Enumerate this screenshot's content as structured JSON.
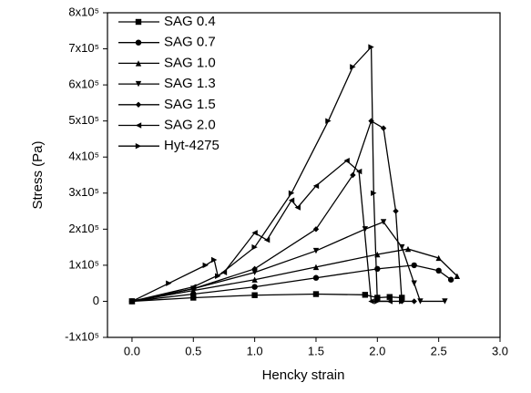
{
  "chart_data": {
    "type": "line",
    "x_label": "Hencky strain",
    "y_label": "Stress (Pa)",
    "xlim": [
      -0.2,
      3.0
    ],
    "xticks": [
      {
        "value": 0,
        "label": "0.0"
      },
      0.5,
      {
        "value": 1,
        "label": "1.0"
      },
      1.5,
      {
        "value": 2,
        "label": "2.0"
      },
      2.5,
      {
        "value": 3,
        "label": "3.0"
      }
    ],
    "ylim": [
      -100000,
      800000
    ],
    "yticks": [
      {
        "value": -100000,
        "label": "-1x10⁵"
      },
      0,
      {
        "value": 100000,
        "label": "1x10⁵"
      },
      {
        "value": 200000,
        "label": "2x10⁵"
      },
      {
        "value": 300000,
        "label": "3x10⁵"
      },
      {
        "value": 400000,
        "label": "4x10⁵"
      },
      {
        "value": 500000,
        "label": "5x10⁵"
      },
      {
        "value": 600000,
        "label": "6x10⁵"
      },
      {
        "value": 700000,
        "label": "7x10⁵"
      },
      {
        "value": 800000,
        "label": "8x10⁵"
      }
    ],
    "legend": "top-left",
    "series": [
      {
        "name": "SAG 0.4",
        "color": "#000000",
        "marker": "square",
        "x": [
          0,
          0.5,
          1.0,
          1.5,
          1.9,
          2.0,
          2.1,
          2.2
        ],
        "values": [
          0,
          10000,
          17000,
          20000,
          18000,
          10000,
          12000,
          10000
        ]
      },
      {
        "name": "SAG 0.7",
        "color": "#000000",
        "marker": "circle",
        "x": [
          0,
          0.5,
          1.0,
          1.5,
          2.0,
          2.3,
          2.5,
          2.6
        ],
        "values": [
          0,
          20000,
          40000,
          65000,
          90000,
          100000,
          85000,
          60000
        ]
      },
      {
        "name": "SAG 1.0",
        "color": "#000000",
        "marker": "triangle-up",
        "x": [
          0,
          0.5,
          1.0,
          1.5,
          2.0,
          2.25,
          2.5,
          2.65
        ],
        "values": [
          0,
          30000,
          60000,
          95000,
          130000,
          145000,
          120000,
          70000
        ]
      },
      {
        "name": "SAG 1.3",
        "color": "#000000",
        "marker": "triangle-down",
        "x": [
          0,
          0.5,
          1.0,
          1.5,
          1.9,
          2.05,
          2.2,
          2.3,
          2.35,
          2.55
        ],
        "values": [
          0,
          35000,
          80000,
          140000,
          200000,
          220000,
          150000,
          50000,
          0,
          0
        ]
      },
      {
        "name": "SAG 1.5",
        "color": "#000000",
        "marker": "diamond",
        "x": [
          0,
          0.5,
          1.0,
          1.5,
          1.8,
          1.95,
          2.05,
          2.15,
          2.2,
          2.3
        ],
        "values": [
          0,
          35000,
          90000,
          200000,
          350000,
          500000,
          480000,
          250000,
          0,
          0
        ]
      },
      {
        "name": "SAG 2.0",
        "color": "#000000",
        "marker": "triangle-left",
        "x": [
          0,
          0.5,
          0.75,
          1.0,
          1.1,
          1.3,
          1.35,
          1.5,
          1.75,
          1.85,
          1.95,
          2.1
        ],
        "values": [
          0,
          40000,
          80000,
          190000,
          170000,
          280000,
          260000,
          320000,
          390000,
          360000,
          0,
          0
        ]
      },
      {
        "name": "Hyt-4275",
        "color": "#000000",
        "marker": "triangle-right",
        "x": [
          0,
          0.3,
          0.6,
          0.67,
          0.7,
          1.0,
          1.3,
          1.6,
          1.8,
          1.95,
          1.97,
          2.0,
          2.2
        ],
        "values": [
          0,
          50000,
          100000,
          115000,
          70000,
          150000,
          300000,
          500000,
          650000,
          705000,
          300000,
          0,
          0
        ]
      }
    ]
  }
}
